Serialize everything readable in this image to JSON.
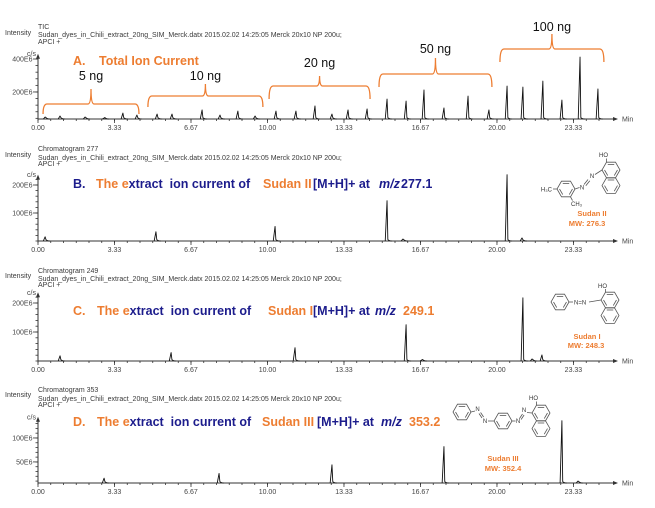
{
  "colors": {
    "accent_orange": "#ED7D31",
    "title_blue": "#1C1C8C",
    "trace": "#111111"
  },
  "chart_data": [
    {
      "panel": "A",
      "type": "line",
      "trace_name": "TIC",
      "file_info": "Sudan_dyes_in_Chili_extract_20ng_SIM_Merck.datx 2015.02.02 14:25:05 Merck 20x10 NP 200u;",
      "ionization": "APCI +",
      "ylabel": "Intensity",
      "yunit": "c/s",
      "xlabel": "Min",
      "title_segments": [
        "A.",
        "Total Ion Current"
      ],
      "intensity_unit": "E6 c/s",
      "xlim": [
        0,
        25.1
      ],
      "ylim": [
        36,
        420
      ],
      "xminor_step": 0.5556,
      "yminor_step": 40,
      "xticks": [
        {
          "value": 0,
          "label": "0.00"
        },
        {
          "value": 3.333,
          "label": "3.33"
        },
        {
          "value": 6.667,
          "label": "6.67"
        },
        {
          "value": 10,
          "label": "10.00"
        },
        {
          "value": 13.333,
          "label": "13.33"
        },
        {
          "value": 16.667,
          "label": "16.67"
        },
        {
          "value": 20,
          "label": "20.00"
        },
        {
          "value": 23.333,
          "label": "23.33"
        }
      ],
      "yticks": [
        {
          "value": 200,
          "label": "200E6"
        },
        {
          "value": 400,
          "label": "400E6"
        }
      ],
      "annotations": [
        {
          "label": "5 ng",
          "from": 0.22,
          "to": 4.4
        },
        {
          "label": "10 ng",
          "from": 4.79,
          "to": 9.8
        },
        {
          "label": "20 ng",
          "from": 10.07,
          "to": 14.47
        },
        {
          "label": "50 ng",
          "from": 14.86,
          "to": 19.78
        },
        {
          "label": "100 ng",
          "from": 20.13,
          "to": 24.66
        }
      ],
      "peaks": [
        {
          "rt": 0.31,
          "intensity": 48
        },
        {
          "rt": 0.96,
          "intensity": 54
        },
        {
          "rt": 2.05,
          "intensity": 48
        },
        {
          "rt": 2.88,
          "intensity": 42
        },
        {
          "rt": 3.7,
          "intensity": 72
        },
        {
          "rt": 4.31,
          "intensity": 60
        },
        {
          "rt": 5.19,
          "intensity": 66
        },
        {
          "rt": 5.84,
          "intensity": 66
        },
        {
          "rt": 7.15,
          "intensity": 91
        },
        {
          "rt": 7.93,
          "intensity": 60
        },
        {
          "rt": 8.71,
          "intensity": 84
        },
        {
          "rt": 9.46,
          "intensity": 54
        },
        {
          "rt": 10.37,
          "intensity": 84
        },
        {
          "rt": 11.24,
          "intensity": 84
        },
        {
          "rt": 12.07,
          "intensity": 115
        },
        {
          "rt": 12.81,
          "intensity": 66
        },
        {
          "rt": 13.51,
          "intensity": 91
        },
        {
          "rt": 14.34,
          "intensity": 97
        },
        {
          "rt": 15.21,
          "intensity": 157
        },
        {
          "rt": 16.04,
          "intensity": 145
        },
        {
          "rt": 16.82,
          "intensity": 212
        },
        {
          "rt": 17.69,
          "intensity": 103
        },
        {
          "rt": 18.74,
          "intensity": 175
        },
        {
          "rt": 19.65,
          "intensity": 91
        },
        {
          "rt": 20.44,
          "intensity": 236
        },
        {
          "rt": 21.13,
          "intensity": 230
        },
        {
          "rt": 22.0,
          "intensity": 266
        },
        {
          "rt": 22.83,
          "intensity": 151
        },
        {
          "rt": 23.62,
          "intensity": 412
        },
        {
          "rt": 24.4,
          "intensity": 218
        }
      ]
    },
    {
      "panel": "B",
      "type": "line",
      "trace_name": "Chromatogram 277",
      "file_info": "Sudan_dyes_in_Chili_extract_20ng_SIM_Merck.datx 2015.02.02 14:25:05 Merck 20x10 NP 200u;",
      "ionization": "APCI +",
      "ylabel": "Intensity",
      "yunit": "c/s",
      "xlabel": "Min",
      "title_segments": [
        "B.",
        "The e",
        "xtract  ion current of",
        "Sudan II",
        "[M+H]+ at",
        "m/z",
        "277.1"
      ],
      "intensity_unit": "E6 c/s",
      "xlim": [
        0,
        25.1
      ],
      "ylim": [
        0,
        230
      ],
      "xminor_step": 0.5556,
      "yminor_step": 20,
      "xticks": [
        {
          "value": 0,
          "label": "0.00"
        },
        {
          "value": 3.333,
          "label": "3.33"
        },
        {
          "value": 6.667,
          "label": "6.67"
        },
        {
          "value": 10,
          "label": "10.00"
        },
        {
          "value": 13.333,
          "label": "13.33"
        },
        {
          "value": 16.667,
          "label": "16.67"
        },
        {
          "value": 20,
          "label": "20.00"
        },
        {
          "value": 23.333,
          "label": "23.33"
        }
      ],
      "yticks": [
        {
          "value": 100,
          "label": "100E6"
        },
        {
          "value": 200,
          "label": "200E6"
        }
      ],
      "peaks": [
        {
          "rt": 0.31,
          "intensity": 15
        },
        {
          "rt": 5.14,
          "intensity": 33
        },
        {
          "rt": 10.33,
          "intensity": 52
        },
        {
          "rt": 15.21,
          "intensity": 144
        },
        {
          "rt": 15.9,
          "intensity": 7
        },
        {
          "rt": 20.44,
          "intensity": 237
        },
        {
          "rt": 21.09,
          "intensity": 11
        }
      ]
    },
    {
      "panel": "C",
      "type": "line",
      "trace_name": "Chromatogram 249",
      "file_info": "Sudan_dyes_in_Chili_extract_20ng_SIM_Merck.datx 2015.02.02 14:25:05 Merck 20x10 NP 200u;",
      "ionization": "APCI +",
      "ylabel": "Intensity",
      "yunit": "c/s",
      "xlabel": "Min",
      "title_segments": [
        "C.",
        "The e",
        "xtract  ion current of",
        "Sudan I",
        "[M+H]+ at",
        "m/z",
        "249.1"
      ],
      "intensity_unit": "E6 c/s",
      "xlim": [
        0,
        25.1
      ],
      "ylim": [
        0,
        230
      ],
      "xminor_step": 0.5556,
      "yminor_step": 20,
      "xticks": [
        {
          "value": 0,
          "label": "0.00"
        },
        {
          "value": 3.333,
          "label": "3.33"
        },
        {
          "value": 6.667,
          "label": "6.67"
        },
        {
          "value": 10,
          "label": "10.00"
        },
        {
          "value": 13.333,
          "label": "13.33"
        },
        {
          "value": 16.667,
          "label": "16.67"
        },
        {
          "value": 20,
          "label": "20.00"
        },
        {
          "value": 23.333,
          "label": "23.33"
        }
      ],
      "yticks": [
        {
          "value": 100,
          "label": "100E6"
        },
        {
          "value": 200,
          "label": "200E6"
        }
      ],
      "peaks": [
        {
          "rt": 0.96,
          "intensity": 18
        },
        {
          "rt": 5.8,
          "intensity": 29
        },
        {
          "rt": 11.2,
          "intensity": 46
        },
        {
          "rt": 16.04,
          "intensity": 125
        },
        {
          "rt": 16.73,
          "intensity": 4
        },
        {
          "rt": 21.13,
          "intensity": 218
        },
        {
          "rt": 21.53,
          "intensity": 7
        },
        {
          "rt": 21.96,
          "intensity": 21
        }
      ]
    },
    {
      "panel": "D",
      "type": "line",
      "trace_name": "Chromatogram 353",
      "file_info": "Sudan_dyes_in_Chili_extract_20ng_SIM_Merck.datx 2015.02.02 14:25:05 Merck 20x10 NP 200u;",
      "ionization": "APCI +",
      "ylabel": "Intensity",
      "yunit": "c/s",
      "xlabel": "Min",
      "title_segments": [
        "D.",
        "The e",
        "xtract  ion current of",
        "Sudan III",
        "[M+H]+ at",
        "m/z",
        "353.2"
      ],
      "intensity_unit": "E6 c/s",
      "xlim": [
        0,
        25.1
      ],
      "ylim": [
        6,
        140
      ],
      "xminor_step": 0.5556,
      "yminor_step": 10,
      "xticks": [
        {
          "value": 0,
          "label": "0.00"
        },
        {
          "value": 3.333,
          "label": "3.33"
        },
        {
          "value": 6.667,
          "label": "6.67"
        },
        {
          "value": 10,
          "label": "10.00"
        },
        {
          "value": 13.333,
          "label": "13.33"
        },
        {
          "value": 16.667,
          "label": "16.67"
        },
        {
          "value": 20,
          "label": "20.00"
        },
        {
          "value": 23.333,
          "label": "23.33"
        }
      ],
      "yticks": [
        {
          "value": 50,
          "label": "50E6"
        },
        {
          "value": 100,
          "label": "100E6"
        }
      ],
      "peaks": [
        {
          "rt": 2.88,
          "intensity": 16
        },
        {
          "rt": 7.89,
          "intensity": 26
        },
        {
          "rt": 12.81,
          "intensity": 44
        },
        {
          "rt": 17.69,
          "intensity": 82
        },
        {
          "rt": 22.83,
          "intensity": 136
        },
        {
          "rt": 23.53,
          "intensity": 10
        }
      ]
    }
  ],
  "structures": [
    {
      "name": "Sudan II",
      "mw": "MW: 276.3",
      "atoms": [
        "HO",
        "N",
        "N",
        "H₃C",
        "CH₃"
      ]
    },
    {
      "name": "Sudan I",
      "mw": "MW: 248.3",
      "atoms": [
        "HO",
        "N=N"
      ]
    },
    {
      "name": "Sudan III",
      "mw": "MW: 352.4",
      "atoms": [
        "HO",
        "N",
        "N",
        "N",
        "N"
      ]
    }
  ]
}
